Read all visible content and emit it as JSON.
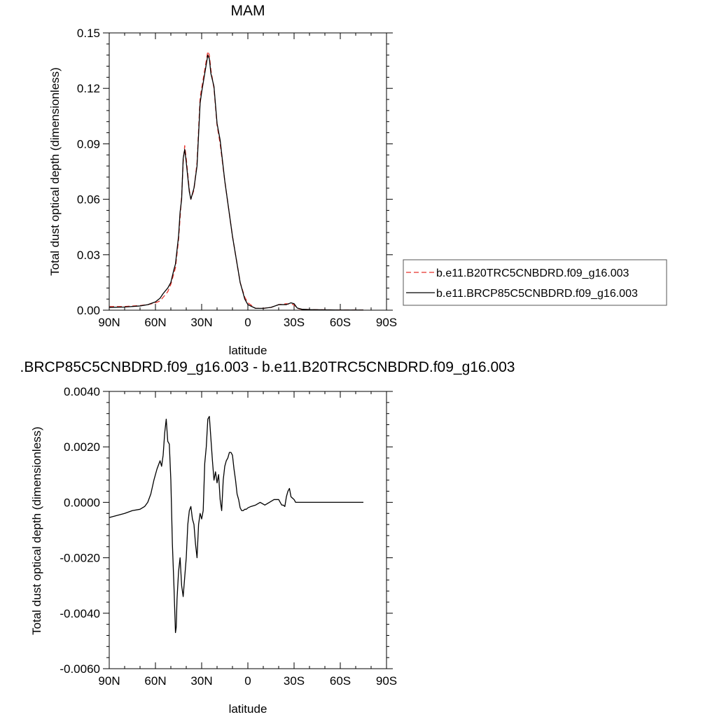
{
  "chart_data": [
    {
      "type": "line",
      "title": "MAM",
      "xlabel": "latitude",
      "ylabel": "Total dust optical depth (dimensionless)",
      "xlim": [
        90,
        -90
      ],
      "ylim": [
        0,
        0.15
      ],
      "x_ticks": [
        90,
        60,
        30,
        0,
        -30,
        -60,
        -90
      ],
      "x_tick_labels": [
        "90N",
        "60N",
        "30N",
        "0",
        "30S",
        "60S",
        "90S"
      ],
      "y_ticks": [
        0,
        0.03,
        0.06,
        0.09,
        0.12,
        0.15
      ],
      "y_tick_labels": [
        "0.00",
        "0.03",
        "0.06",
        "0.09",
        "0.12",
        "0.15"
      ],
      "grid": false,
      "legend_position": "outside-right",
      "series": [
        {
          "name": "b.e11.B20TRC5CNBDRD.f09_g16.003",
          "color": "#e8322b",
          "dash": "dashed",
          "x": [
            90,
            80,
            70,
            65,
            60,
            57,
            55,
            52,
            50,
            48,
            47,
            45,
            44,
            43,
            42,
            41,
            40,
            38,
            37,
            35,
            33,
            31,
            30,
            28,
            27,
            26,
            25,
            24,
            22,
            20,
            18,
            15,
            10,
            5,
            2,
            0,
            -5,
            -10,
            -15,
            -20,
            -25,
            -28,
            -30,
            -32,
            -35,
            -40,
            -50,
            -60,
            -75
          ],
          "y": [
            0.002,
            0.002,
            0.0025,
            0.003,
            0.004,
            0.005,
            0.007,
            0.01,
            0.014,
            0.02,
            0.023,
            0.038,
            0.05,
            0.062,
            0.08,
            0.089,
            0.082,
            0.065,
            0.06,
            0.065,
            0.08,
            0.115,
            0.12,
            0.13,
            0.135,
            0.14,
            0.138,
            0.13,
            0.12,
            0.1,
            0.09,
            0.07,
            0.04,
            0.015,
            0.007,
            0.004,
            0.001,
            0.001,
            0.0015,
            0.003,
            0.0035,
            0.0032,
            0.003,
            0.001,
            0.0005,
            0.0003,
            0.0002,
            0.0001,
            0.0001
          ]
        },
        {
          "name": "b.e11.BRCP85C5CNBDRD.f09_g16.003",
          "color": "#000000",
          "dash": "solid",
          "x": [
            90,
            80,
            70,
            65,
            60,
            57,
            55,
            52,
            50,
            48,
            47,
            45,
            44,
            43,
            42,
            41,
            40,
            38,
            37,
            35,
            33,
            31,
            30,
            28,
            27,
            26,
            25,
            24,
            22,
            20,
            18,
            15,
            10,
            5,
            2,
            0,
            -5,
            -10,
            -15,
            -20,
            -25,
            -28,
            -30,
            -32,
            -35,
            -40,
            -50,
            -60,
            -75
          ],
          "y": [
            0.0015,
            0.0017,
            0.0023,
            0.003,
            0.0045,
            0.0065,
            0.009,
            0.012,
            0.015,
            0.022,
            0.025,
            0.04,
            0.053,
            0.06,
            0.082,
            0.087,
            0.08,
            0.064,
            0.06,
            0.066,
            0.078,
            0.112,
            0.118,
            0.128,
            0.133,
            0.138,
            0.136,
            0.128,
            0.121,
            0.101,
            0.092,
            0.07,
            0.04,
            0.015,
            0.006,
            0.003,
            0.001,
            0.001,
            0.0015,
            0.003,
            0.003,
            0.004,
            0.0035,
            0.0012,
            0.0005,
            0.0003,
            0.0002,
            0.0001,
            0.0001
          ]
        }
      ]
    },
    {
      "type": "line",
      "title": ".BRCP85C5CNBDRD.f09_g16.003 - b.e11.B20TRC5CNBDRD.f09_g16.003",
      "xlabel": "latitude",
      "ylabel": "Total dust optical depth (dimensionless)",
      "xlim": [
        90,
        -90
      ],
      "ylim": [
        -0.006,
        0.004
      ],
      "x_ticks": [
        90,
        60,
        30,
        0,
        -30,
        -60,
        -90
      ],
      "x_tick_labels": [
        "90N",
        "60N",
        "30N",
        "0",
        "30S",
        "60S",
        "90S"
      ],
      "y_ticks": [
        -0.006,
        -0.004,
        -0.002,
        0,
        0.002,
        0.004
      ],
      "y_tick_labels": [
        "-0.0060",
        "-0.0040",
        "-0.0020",
        "0.0000",
        "0.0020",
        "0.0040"
      ],
      "grid": false,
      "series": [
        {
          "color": "#000000",
          "dash": "solid",
          "x": [
            90,
            80,
            75,
            70,
            67,
            65,
            63,
            61,
            59,
            57,
            56,
            55,
            54,
            53,
            52,
            51,
            50,
            49,
            48,
            47,
            46.5,
            46,
            45,
            44,
            43,
            42,
            41,
            40,
            39,
            38,
            37,
            36,
            35,
            34,
            33,
            32,
            31,
            30,
            29,
            28,
            27,
            26,
            25,
            24,
            23,
            22,
            21,
            20,
            19,
            18,
            17,
            16,
            15,
            14,
            13,
            12,
            11,
            10,
            9,
            8,
            7,
            6,
            5,
            4,
            3,
            2,
            1,
            0,
            -2,
            -5,
            -8,
            -11,
            -14,
            -17,
            -19,
            -20,
            -21,
            -22,
            -23,
            -24,
            -25,
            -26,
            -27,
            -28,
            -29,
            -30,
            -31,
            -33,
            -35,
            -40,
            -50,
            -60,
            -75
          ],
          "y": [
            -0.00055,
            -0.0004,
            -0.0003,
            -0.00025,
            -0.00015,
            0.0,
            0.0003,
            0.0008,
            0.0012,
            0.0015,
            0.0013,
            0.0017,
            0.0025,
            0.003,
            0.0022,
            0.0021,
            0.0008,
            -0.0015,
            -0.003,
            -0.0047,
            -0.0045,
            -0.0035,
            -0.0025,
            -0.002,
            -0.003,
            -0.0034,
            -0.0027,
            -0.002,
            -0.0008,
            -0.0003,
            -0.00015,
            -0.0006,
            -0.0008,
            -0.0015,
            -0.002,
            -0.0008,
            -0.0004,
            -0.0006,
            -0.0003,
            0.0014,
            0.002,
            0.003,
            0.0031,
            0.0023,
            0.0015,
            0.0008,
            0.0011,
            0.0007,
            0.001,
            0.0001,
            -0.0003,
            0.0008,
            0.0013,
            0.0015,
            0.0016,
            0.0018,
            0.0018,
            0.0017,
            0.0012,
            0.0008,
            0.0003,
            0.0001,
            -0.0002,
            -0.0003,
            -0.0003,
            -0.00025,
            -0.00025,
            -0.0002,
            -0.00015,
            -0.0001,
            0.0,
            -0.0001,
            0.0,
            0.0001,
            0.0001,
            0.0001,
            0.0,
            -0.0001,
            -0.0001,
            -0.00015,
            0.0002,
            0.0004,
            0.0005,
            0.0002,
            0.00015,
            0.0001,
            0.0,
            0.0,
            0.0,
            0.0,
            0.0,
            0.0,
            0.0
          ]
        }
      ]
    }
  ]
}
